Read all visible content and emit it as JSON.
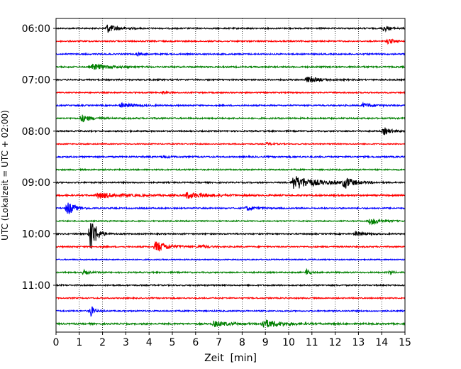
{
  "chart_data": {
    "type": "line",
    "title": "",
    "xlabel": "Zeit  [min]",
    "ylabel": "UTC (Lokalzeit = UTC + 02:00)",
    "xlim": [
      0,
      15
    ],
    "x_ticks": [
      0,
      1,
      2,
      3,
      4,
      5,
      6,
      7,
      8,
      9,
      10,
      11,
      12,
      13,
      14,
      15
    ],
    "y_tick_labels": [
      "06:00",
      "07:00",
      "08:00",
      "09:00",
      "10:00",
      "11:00"
    ],
    "y_tick_trace_index": [
      0,
      4,
      8,
      12,
      16,
      20
    ],
    "grid": "vertical dotted",
    "trace_interval_minutes": 15,
    "trace_colors": [
      "#000000",
      "#ff0000",
      "#0000ff",
      "#008000"
    ],
    "traces": [
      {
        "start": "06:00",
        "noise": 1.0,
        "events": [
          {
            "t": 2.2,
            "amp": 6,
            "dur": 0.9
          },
          {
            "t": 14.1,
            "amp": 4,
            "dur": 0.6
          }
        ]
      },
      {
        "start": "06:15",
        "noise": 1.0,
        "events": [
          {
            "t": 14.3,
            "amp": 4,
            "dur": 0.4
          }
        ]
      },
      {
        "start": "06:30",
        "noise": 1.0,
        "events": [
          {
            "t": 3.5,
            "amp": 2,
            "dur": 0.4
          }
        ]
      },
      {
        "start": "06:45",
        "noise": 1.1,
        "events": [
          {
            "t": 1.6,
            "amp": 4,
            "dur": 1.4
          }
        ]
      },
      {
        "start": "07:00",
        "noise": 1.0,
        "events": [
          {
            "t": 10.8,
            "amp": 4,
            "dur": 1.2
          }
        ]
      },
      {
        "start": "07:15",
        "noise": 0.9,
        "events": [
          {
            "t": 4.6,
            "amp": 2,
            "dur": 0.4
          }
        ]
      },
      {
        "start": "07:30",
        "noise": 1.0,
        "events": [
          {
            "t": 2.8,
            "amp": 3,
            "dur": 1.2
          },
          {
            "t": 13.2,
            "amp": 3,
            "dur": 1.0
          }
        ]
      },
      {
        "start": "07:45",
        "noise": 1.1,
        "events": [
          {
            "t": 1.1,
            "amp": 5,
            "dur": 0.8
          }
        ]
      },
      {
        "start": "08:00",
        "noise": 1.0,
        "events": [
          {
            "t": 14.1,
            "amp": 5,
            "dur": 0.7
          }
        ]
      },
      {
        "start": "08:15",
        "noise": 0.8,
        "events": [
          {
            "t": 9.1,
            "amp": 2,
            "dur": 0.5
          }
        ]
      },
      {
        "start": "08:30",
        "noise": 1.1,
        "events": [
          {
            "t": 4.6,
            "amp": 2,
            "dur": 0.5
          }
        ]
      },
      {
        "start": "08:45",
        "noise": 1.0,
        "events": []
      },
      {
        "start": "09:00",
        "noise": 1.0,
        "events": [
          {
            "t": 10.2,
            "amp": 10,
            "dur": 2.0
          },
          {
            "t": 12.4,
            "amp": 8,
            "dur": 0.8
          }
        ]
      },
      {
        "start": "09:15",
        "noise": 1.2,
        "events": [
          {
            "t": 1.8,
            "amp": 4,
            "dur": 2.0
          },
          {
            "t": 5.6,
            "amp": 4,
            "dur": 2.0
          }
        ]
      },
      {
        "start": "09:30",
        "noise": 1.0,
        "events": [
          {
            "t": 0.5,
            "amp": 10,
            "dur": 0.6
          },
          {
            "t": 8.2,
            "amp": 3,
            "dur": 0.8
          }
        ]
      },
      {
        "start": "09:45",
        "noise": 0.9,
        "events": [
          {
            "t": 13.5,
            "amp": 5,
            "dur": 0.9
          }
        ]
      },
      {
        "start": "10:00",
        "noise": 1.0,
        "events": [
          {
            "t": 1.5,
            "amp": 32,
            "dur": 0.3
          },
          {
            "t": 1.7,
            "amp": 5,
            "dur": 0.6
          },
          {
            "t": 12.9,
            "amp": 3,
            "dur": 0.7
          }
        ]
      },
      {
        "start": "10:15",
        "noise": 1.0,
        "events": [
          {
            "t": 4.3,
            "amp": 8,
            "dur": 1.1
          },
          {
            "t": 6.2,
            "amp": 2,
            "dur": 0.6
          }
        ]
      },
      {
        "start": "10:30",
        "noise": 0.8,
        "events": []
      },
      {
        "start": "10:45",
        "noise": 1.0,
        "events": [
          {
            "t": 1.2,
            "amp": 3,
            "dur": 0.4
          },
          {
            "t": 10.8,
            "amp": 6,
            "dur": 0.2
          },
          {
            "t": 14.4,
            "amp": 4,
            "dur": 0.2
          }
        ]
      },
      {
        "start": "11:00",
        "noise": 1.0,
        "events": []
      },
      {
        "start": "11:15",
        "noise": 0.9,
        "events": []
      },
      {
        "start": "11:30",
        "noise": 1.0,
        "events": [
          {
            "t": 1.5,
            "amp": 8,
            "dur": 0.3
          }
        ]
      },
      {
        "start": "11:45",
        "noise": 1.2,
        "events": [
          {
            "t": 6.8,
            "amp": 4,
            "dur": 1.2
          },
          {
            "t": 8.9,
            "amp": 6,
            "dur": 1.6
          }
        ]
      }
    ]
  }
}
